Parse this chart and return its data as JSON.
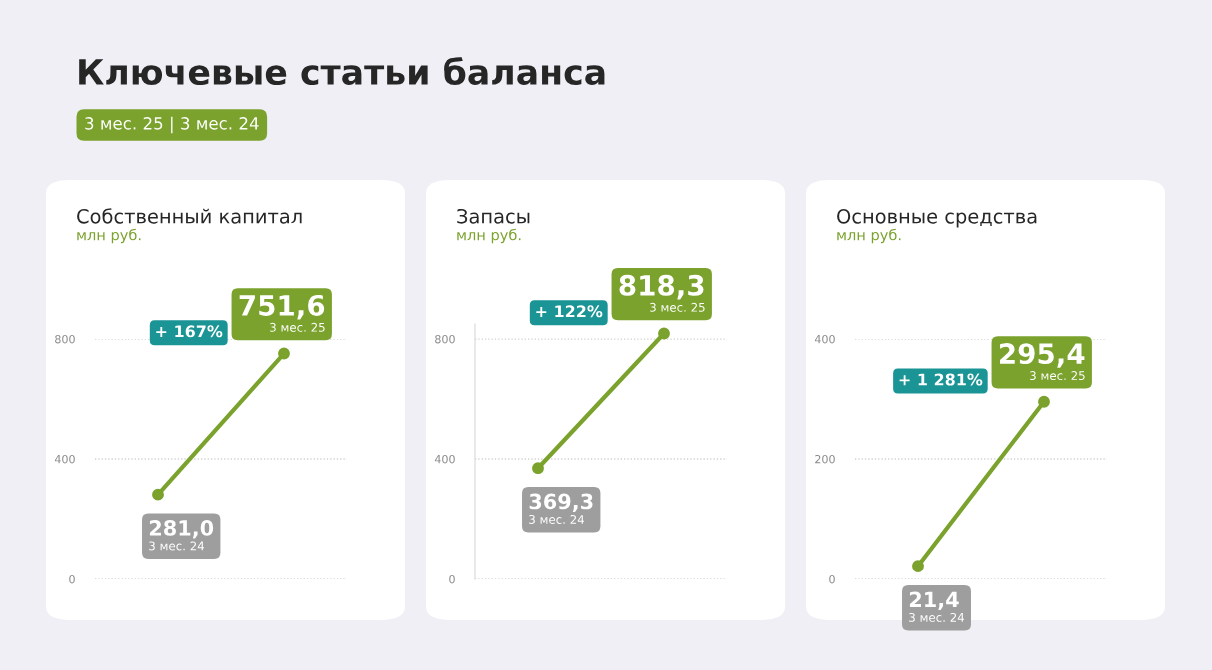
{
  "chart_data": [
    {
      "type": "line",
      "title": "Собственный капитал",
      "ylabel": "млн руб.",
      "categories": [
        null,
        null
      ],
      "series": [
        {
          "color": "#7aa22c",
          "values": [
            281.0,
            751.6
          ],
          "value_labels": [
            "281,0",
            "751,6"
          ]
        }
      ],
      "ylim": [
        0,
        800
      ],
      "yticks": [
        0,
        400,
        800
      ],
      "grid": "y",
      "marker": "circle",
      "line_style": "solid",
      "legend": false,
      "annotations": [
        "Ключевые статьи баланса",
        "3 мес. 25 | 3 мес. 24",
        "3 мес. 24",
        "3 мес. 25",
        "+ 167%"
      ]
    },
    {
      "type": "line",
      "title": "Запасы",
      "ylabel": "млн руб.",
      "categories": [
        null,
        null
      ],
      "series": [
        {
          "color": "#7aa22c",
          "values": [
            369.3,
            818.3
          ],
          "value_labels": [
            "369,3",
            "818,3"
          ]
        }
      ],
      "ylim": [
        0,
        850
      ],
      "yticks": [
        0,
        400,
        800
      ],
      "grid": "y",
      "marker": "circle",
      "line_style": "solid",
      "legend": false,
      "annotations": [
        "3 мес. 24",
        "3 мес. 25",
        "+ 122%"
      ]
    },
    {
      "type": "line",
      "title": "Основные средства",
      "ylabel": "млн руб.",
      "categories": [
        null,
        null
      ],
      "series": [
        {
          "color": "#7aa22c",
          "values": [
            21.4,
            295.4
          ],
          "value_labels": [
            "21,4",
            "295,4"
          ]
        }
      ],
      "ylim": [
        0,
        400
      ],
      "yticks": [
        0,
        200,
        400
      ],
      "grid": "y",
      "marker": "circle",
      "line_style": "solid",
      "legend": false,
      "annotations": [
        "3 мес. 24",
        "3 мес. 25",
        "+ 1 281%"
      ]
    }
  ]
}
